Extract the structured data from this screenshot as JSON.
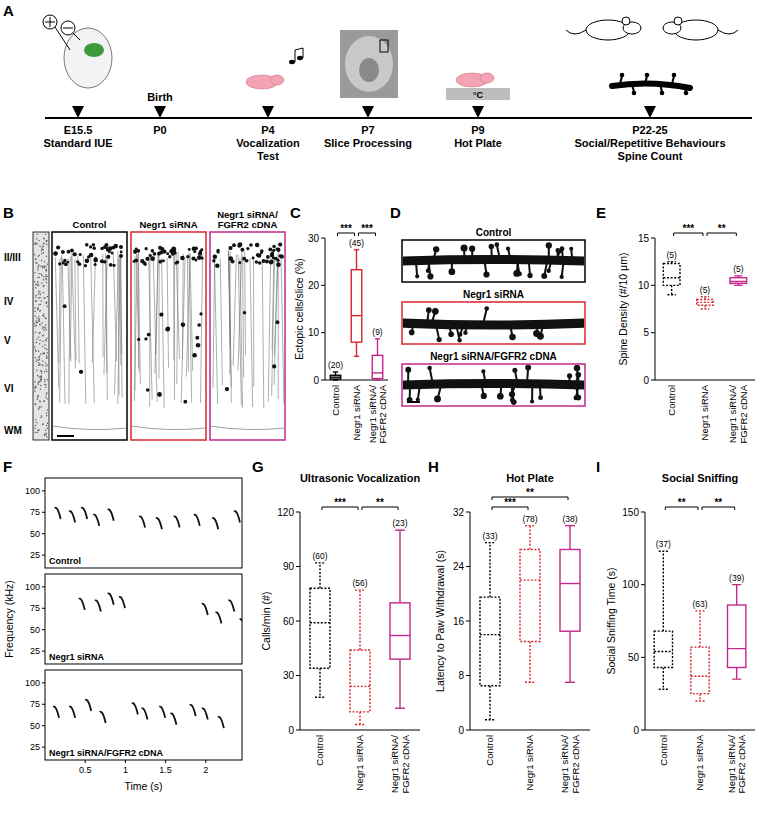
{
  "panel_labels": [
    "A",
    "B",
    "C",
    "D",
    "E",
    "F",
    "G",
    "H",
    "I"
  ],
  "timeline": {
    "events": [
      {
        "lines": [
          "E15.5",
          "Standard IUE"
        ]
      },
      {
        "above": "Birth",
        "lines": [
          "P0"
        ]
      },
      {
        "lines": [
          "P4",
          "Vocalization",
          "Test"
        ]
      },
      {
        "lines": [
          "P7",
          "Slice Processing"
        ]
      },
      {
        "lines": [
          "P9",
          "Hot Plate"
        ]
      },
      {
        "lines": [
          "P22-25",
          "Social/Repetitive Behaviours",
          "Spine Count"
        ]
      }
    ],
    "hot_plate_label": "°C"
  },
  "cortex": {
    "layers": [
      "II/III",
      "IV",
      "V",
      "VI",
      "WM"
    ],
    "conditions": [
      "Control",
      "Negr1 siRNA",
      "Negr1 siRNA/\nFGFR2 cDNA"
    ],
    "colors": [
      "#000000",
      "#d8262f",
      "#c4288a"
    ]
  },
  "spines": {
    "conditions": [
      "Control",
      "Negr1 siRNA",
      "Negr1 siRNA/FGFR2 cDNA"
    ],
    "colors": [
      "#000000",
      "#d8262f",
      "#c4288a"
    ]
  },
  "chart_data": [
    {
      "type": "box",
      "y_label": "Ectopic cells/slice (%)",
      "ylim": [
        0,
        30
      ],
      "yticks": [
        0,
        10,
        20,
        30
      ],
      "series": [
        {
          "name": "Control",
          "color": "#000000",
          "line_style": "solid",
          "min": 0,
          "q1": 0.2,
          "median": 0.6,
          "q3": 1.0,
          "max": 1.7,
          "n_label": "(20)"
        },
        {
          "name": "Negr1 siRNA",
          "color": "#d8262f",
          "line_style": "solid",
          "min": 5,
          "q1": 8,
          "median": 13.6,
          "q3": 23.3,
          "max": 27.5,
          "n_label": "(45)"
        },
        {
          "name": "Negr1 siRNA/\nFGFR2 cDNA",
          "color": "#c4288a",
          "line_style": "solid",
          "min": 0,
          "q1": 0.3,
          "median": 1.5,
          "q3": 5.2,
          "max": 8.7,
          "n_label": "(9)"
        }
      ],
      "significance": [
        {
          "from": 0,
          "to": 1,
          "label": "***"
        },
        {
          "from": 1,
          "to": 2,
          "label": "***"
        }
      ]
    },
    {
      "type": "box",
      "y_label": "Spine Density (#/10 μm)",
      "ylim": [
        0,
        15
      ],
      "yticks": [
        0,
        5,
        10,
        15
      ],
      "series": [
        {
          "name": "Control",
          "color": "#000000",
          "line_style": "dotted",
          "min": 9,
          "q1": 10,
          "median": 10.8,
          "q3": 12.3,
          "max": 12.5,
          "n_label": "(5)"
        },
        {
          "name": "Negr1 siRNA",
          "color": "#d8262f",
          "line_style": "dotted",
          "min": 7.5,
          "q1": 7.9,
          "median": 8.2,
          "q3": 8.5,
          "max": 8.8,
          "n_label": "(5)"
        },
        {
          "name": "Negr1 siRNA/\nFGFR2 cDNA",
          "color": "#c4288a",
          "line_style": "solid",
          "min": 10,
          "q1": 10.2,
          "median": 10.4,
          "q3": 10.8,
          "max": 11,
          "n_label": "(5)"
        }
      ],
      "significance": [
        {
          "from": 0,
          "to": 1,
          "label": "***"
        },
        {
          "from": 1,
          "to": 2,
          "label": "**"
        }
      ]
    },
    {
      "type": "spectrogram",
      "x_label": "Time (s)",
      "y_label": "Frequency (kHz)",
      "xlim": [
        0,
        2.45
      ],
      "ylim": [
        10,
        115
      ],
      "xticks": [
        0.5,
        1,
        1.5,
        2
      ],
      "yticks": [
        25,
        50,
        75,
        100
      ],
      "marker": "call",
      "series": [
        {
          "name": "Control",
          "x": [
            0.12,
            0.3,
            0.45,
            0.6,
            0.78,
            1.17,
            1.38,
            1.6,
            1.85,
            2.08,
            2.35
          ],
          "values": [
            80,
            76,
            80,
            72,
            78,
            70,
            68,
            70,
            72,
            68,
            76
          ]
        },
        {
          "name": "Negr1 siRNA",
          "x": [
            0.42,
            0.62,
            0.78,
            0.92,
            1.95,
            2.12,
            2.28,
            2.42
          ],
          "values": [
            86,
            84,
            92,
            88,
            80,
            70,
            84,
            62
          ]
        },
        {
          "name": "Negr1 siRNA/FGFR2 cDNA",
          "x": [
            0.1,
            0.3,
            0.5,
            0.68,
            1.08,
            1.2,
            1.42,
            1.56,
            1.8,
            1.95,
            2.15
          ],
          "values": [
            72,
            72,
            80,
            66,
            76,
            70,
            72,
            64,
            74,
            70,
            60
          ]
        }
      ]
    },
    {
      "type": "box",
      "title": "Ultrasonic Vocalization",
      "y_label": "Calls/min (#)",
      "ylim": [
        0,
        120
      ],
      "yticks": [
        0,
        30,
        60,
        90,
        120
      ],
      "series": [
        {
          "name": "Control",
          "color": "#000000",
          "line_style": "dotted",
          "min": 18,
          "q1": 34,
          "median": 59,
          "q3": 78,
          "max": 92,
          "n_label": "(60)"
        },
        {
          "name": "Negr1 siRNA",
          "color": "#d8262f",
          "line_style": "dotted",
          "min": 3,
          "q1": 10,
          "median": 24,
          "q3": 44,
          "max": 77,
          "n_label": "(56)"
        },
        {
          "name": "Negr1 siRNA/\nFGFR2 cDNA",
          "color": "#c4288a",
          "line_style": "solid",
          "min": 12,
          "q1": 39,
          "median": 52,
          "q3": 70,
          "max": 110,
          "n_label": "(23)"
        }
      ],
      "significance": [
        {
          "from": 0,
          "to": 1,
          "label": "***"
        },
        {
          "from": 1,
          "to": 2,
          "label": "**"
        }
      ]
    },
    {
      "type": "box",
      "title": "Hot Plate",
      "y_label": "Latency to Paw Withdrawal (s)",
      "ylim": [
        0,
        32
      ],
      "yticks": [
        0,
        8,
        16,
        24,
        32
      ],
      "series": [
        {
          "name": "Control",
          "color": "#000000",
          "line_style": "dotted",
          "min": 1.5,
          "q1": 6.5,
          "median": 14,
          "q3": 19.5,
          "max": 27.5,
          "n_label": "(33)"
        },
        {
          "name": "Negr1 siRNA",
          "color": "#d8262f",
          "line_style": "dotted",
          "min": 7,
          "q1": 13,
          "median": 22,
          "q3": 26.5,
          "max": 30,
          "n_label": "(78)"
        },
        {
          "name": "Negr1 siRNA/\nFGFR2 cDNA",
          "color": "#c4288a",
          "line_style": "solid",
          "min": 7,
          "q1": 14.5,
          "median": 21.5,
          "q3": 26.5,
          "max": 30,
          "n_label": "(38)"
        }
      ],
      "significance": [
        {
          "from": 0,
          "to": 1,
          "label": "***"
        },
        {
          "from": 0,
          "to": 2,
          "label": "**"
        }
      ]
    },
    {
      "type": "box",
      "title": "Social Sniffing",
      "y_label": "Social Sniffing Time (s)",
      "ylim": [
        0,
        150
      ],
      "yticks": [
        0,
        50,
        100,
        150
      ],
      "series": [
        {
          "name": "Control",
          "color": "#000000",
          "line_style": "dotted",
          "min": 28,
          "q1": 43,
          "median": 54,
          "q3": 68,
          "max": 123,
          "n_label": "(37)"
        },
        {
          "name": "Negr1 siRNA",
          "color": "#d8262f",
          "line_style": "dotted",
          "min": 20,
          "q1": 25,
          "median": 37,
          "q3": 57,
          "max": 82,
          "n_label": "(63)"
        },
        {
          "name": "Negr1 siRNA/\nFGFR2 cDNA",
          "color": "#c4288a",
          "line_style": "solid",
          "min": 35,
          "q1": 43,
          "median": 56,
          "q3": 86,
          "max": 100,
          "n_label": "(39)"
        }
      ],
      "significance": [
        {
          "from": 0,
          "to": 1,
          "label": "**"
        },
        {
          "from": 1,
          "to": 2,
          "label": "**"
        }
      ]
    }
  ]
}
